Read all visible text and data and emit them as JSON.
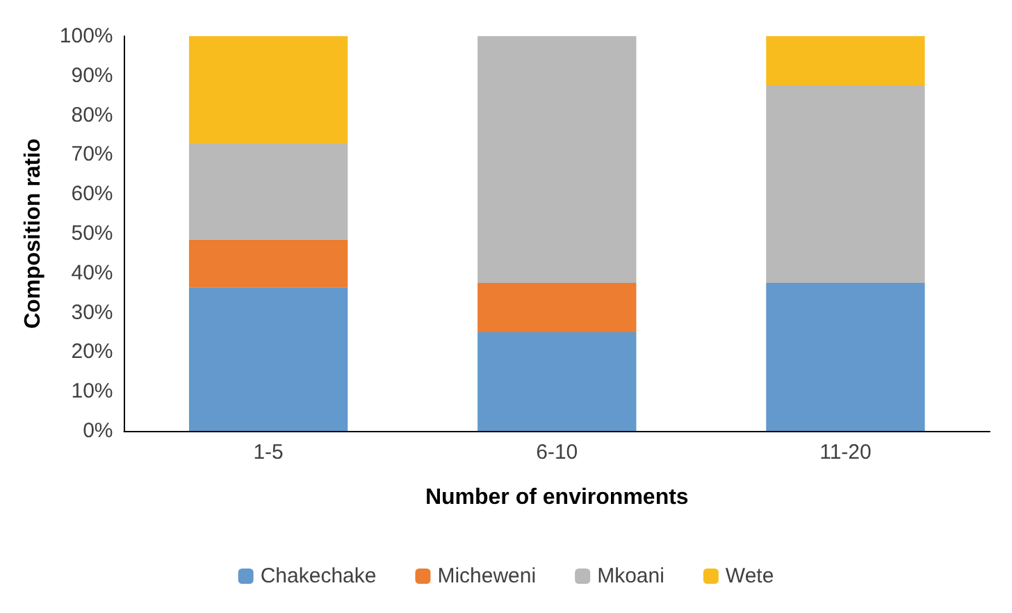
{
  "chart_data": {
    "type": "bar",
    "stacked": true,
    "xlabel": "Number of environments",
    "ylabel": "Composition ratio",
    "categories": [
      "1-5",
      "6-10",
      "11-20"
    ],
    "series": [
      {
        "name": "Chakechake",
        "color": "#6399cc",
        "values": [
          36.4,
          25,
          37.5
        ]
      },
      {
        "name": "Micheweni",
        "color": "#ed7d31",
        "values": [
          12.1,
          12.5,
          0
        ]
      },
      {
        "name": "Mkoani",
        "color": "#b9b9b9",
        "values": [
          24.2,
          62.5,
          50
        ]
      },
      {
        "name": "Wete",
        "color": "#f8bc1f",
        "values": [
          27.3,
          0,
          12.5
        ]
      }
    ],
    "ylim": [
      0,
      100
    ],
    "yticks": [
      {
        "value": 0,
        "label": "0%"
      },
      {
        "value": 10,
        "label": "10%"
      },
      {
        "value": 20,
        "label": "20%"
      },
      {
        "value": 30,
        "label": "30%"
      },
      {
        "value": 40,
        "label": "40%"
      },
      {
        "value": 50,
        "label": "50%"
      },
      {
        "value": 60,
        "label": "60%"
      },
      {
        "value": 70,
        "label": "70%"
      },
      {
        "value": 80,
        "label": "80%"
      },
      {
        "value": 90,
        "label": "90%"
      },
      {
        "value": 100,
        "label": "100%"
      }
    ],
    "grid": false,
    "legend": "bottom"
  }
}
